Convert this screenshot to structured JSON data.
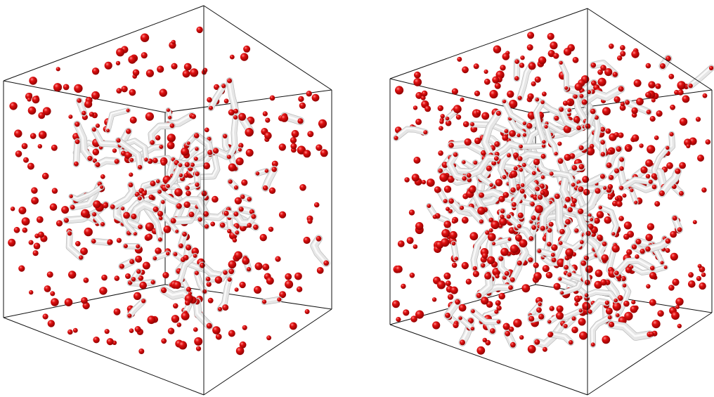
{
  "panels": [
    {
      "id": "left",
      "sphere_count": 310,
      "tube_count": 95,
      "seed": 11,
      "density": "sparse"
    },
    {
      "id": "right",
      "sphere_count": 470,
      "tube_count": 190,
      "seed": 29,
      "density": "dense"
    }
  ],
  "colors": {
    "background": "#ffffff",
    "edge": "#111111",
    "sphere": "#e01010",
    "sphere_highlight": "#ff6b6b",
    "sphere_shadow": "#9b0000",
    "tube": "#e6e6e6",
    "tube_highlight": "#fafafa",
    "tube_shadow": "#bdbdbd"
  }
}
